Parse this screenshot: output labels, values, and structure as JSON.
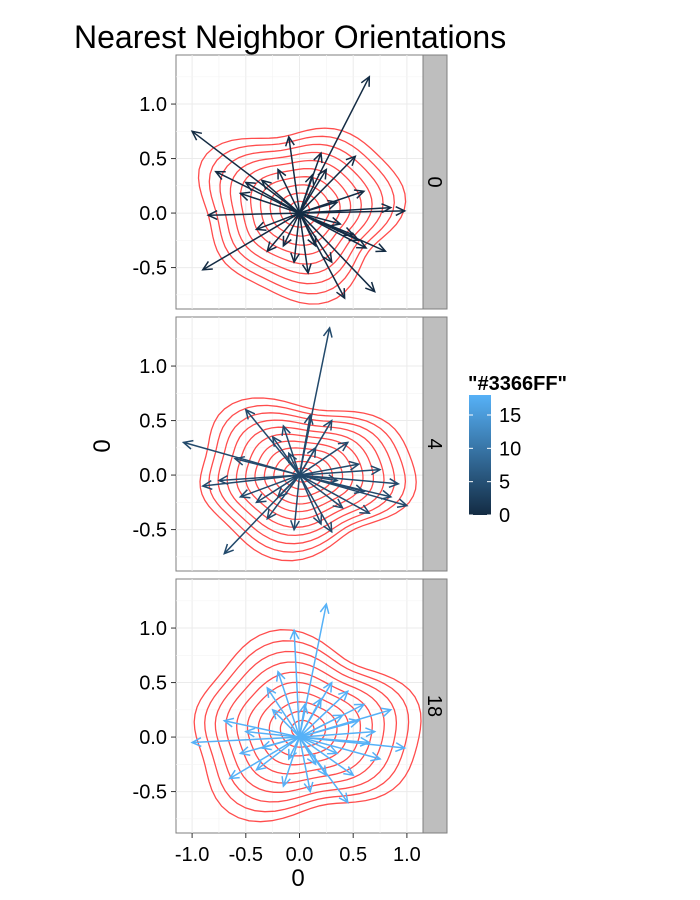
{
  "chart_data": {
    "type": "vector-field",
    "title": "Nearest Neighbor Orientations",
    "xlabel": "0",
    "ylabel": "0",
    "xlim": [
      -1.15,
      1.15
    ],
    "ylim": [
      -0.88,
      1.45
    ],
    "x_ticks": [
      -1.0,
      -0.5,
      0.0,
      0.5,
      1.0
    ],
    "x_tick_labels": [
      "-1.0",
      "-0.5",
      "0.0",
      "0.5",
      "1.0"
    ],
    "y_ticks": [
      -0.5,
      0.0,
      0.5,
      1.0
    ],
    "y_tick_labels": [
      "-0.5",
      "0.0",
      "0.5",
      "1.0"
    ],
    "grid": true,
    "legend": {
      "title": "\"#3366FF\"",
      "position": "right",
      "labels": [
        "15",
        "10",
        "5",
        "0"
      ],
      "ticks": [
        15,
        10,
        5,
        0
      ],
      "range": [
        0,
        18
      ],
      "low_color": "#132B43",
      "high_color": "#56B1F7"
    },
    "contour_color": "#FF4D4D",
    "strip_fill": "#BEBEBE",
    "panels": [
      {
        "strip_label": "0",
        "color_value": 0,
        "contours": {
          "cx": 0.0,
          "cy": 0.03,
          "rx": 0.92,
          "ry": 0.78,
          "levels": 10
        },
        "arrows": [
          {
            "x": 0.65,
            "y": 1.25
          },
          {
            "x": -1.0,
            "y": 0.75
          },
          {
            "x": -0.9,
            "y": -0.52
          },
          {
            "x": 0.42,
            "y": -0.78
          },
          {
            "x": 0.7,
            "y": -0.72
          },
          {
            "x": 0.98,
            "y": 0.02
          },
          {
            "x": 0.8,
            "y": -0.35
          },
          {
            "x": 0.52,
            "y": 0.52
          },
          {
            "x": -0.78,
            "y": 0.38
          },
          {
            "x": -0.5,
            "y": 0.28
          },
          {
            "x": -0.85,
            "y": -0.02
          },
          {
            "x": 0.08,
            "y": -0.55
          },
          {
            "x": -0.1,
            "y": 0.7
          },
          {
            "x": 0.25,
            "y": 0.4
          },
          {
            "x": -0.3,
            "y": -0.35
          },
          {
            "x": 0.5,
            "y": -0.2
          },
          {
            "x": 0.35,
            "y": 0.1
          },
          {
            "x": 0.15,
            "y": -0.3
          },
          {
            "x": -0.35,
            "y": 0.3
          },
          {
            "x": 0.55,
            "y": -0.25
          },
          {
            "x": -0.05,
            "y": -0.45
          },
          {
            "x": 0.3,
            "y": -0.45
          },
          {
            "x": -0.55,
            "y": 0.18
          },
          {
            "x": 0.6,
            "y": 0.2
          },
          {
            "x": 0.2,
            "y": 0.55
          },
          {
            "x": -0.2,
            "y": 0.4
          },
          {
            "x": 0.85,
            "y": 0.05
          },
          {
            "x": 0.62,
            "y": -0.32
          },
          {
            "x": -0.4,
            "y": -0.15
          },
          {
            "x": 0.12,
            "y": 0.35
          },
          {
            "x": -0.15,
            "y": -0.3
          },
          {
            "x": 0.38,
            "y": -0.1
          }
        ]
      },
      {
        "strip_label": "4",
        "color_value": 4,
        "contours": {
          "cx": 0.03,
          "cy": 0.0,
          "rx": 1.0,
          "ry": 0.7,
          "levels": 11
        },
        "arrows": [
          {
            "x": 0.28,
            "y": 1.35
          },
          {
            "x": -1.08,
            "y": 0.3
          },
          {
            "x": -0.7,
            "y": -0.72
          },
          {
            "x": 1.0,
            "y": -0.28
          },
          {
            "x": 0.3,
            "y": -0.52
          },
          {
            "x": 0.65,
            "y": -0.35
          },
          {
            "x": -0.9,
            "y": -0.1
          },
          {
            "x": 0.92,
            "y": -0.08
          },
          {
            "x": 0.55,
            "y": 0.1
          },
          {
            "x": 0.1,
            "y": 0.55
          },
          {
            "x": -0.5,
            "y": 0.6
          },
          {
            "x": -0.3,
            "y": -0.4
          },
          {
            "x": -0.6,
            "y": 0.15
          },
          {
            "x": 0.45,
            "y": 0.3
          },
          {
            "x": -0.15,
            "y": 0.45
          },
          {
            "x": 0.2,
            "y": -0.45
          },
          {
            "x": -0.4,
            "y": -0.25
          },
          {
            "x": 0.75,
            "y": 0.05
          },
          {
            "x": 0.3,
            "y": 0.5
          },
          {
            "x": -0.05,
            "y": -0.5
          },
          {
            "x": 0.6,
            "y": -0.15
          },
          {
            "x": -0.25,
            "y": 0.35
          },
          {
            "x": 0.15,
            "y": 0.25
          },
          {
            "x": -0.75,
            "y": -0.05
          },
          {
            "x": 0.4,
            "y": -0.3
          },
          {
            "x": -0.1,
            "y": 0.2
          },
          {
            "x": 0.85,
            "y": -0.2
          },
          {
            "x": -0.55,
            "y": -0.2
          },
          {
            "x": 0.35,
            "y": -0.05
          },
          {
            "x": -0.2,
            "y": -0.2
          }
        ]
      },
      {
        "strip_label": "18",
        "color_value": 18,
        "contours": {
          "cx": 0.03,
          "cy": 0.07,
          "rx": 1.05,
          "ry": 0.82,
          "levels": 10
        },
        "arrows": [
          {
            "x": 0.25,
            "y": 1.22
          },
          {
            "x": -1.0,
            "y": -0.05
          },
          {
            "x": -0.7,
            "y": 0.15
          },
          {
            "x": 0.98,
            "y": -0.1
          },
          {
            "x": 0.85,
            "y": 0.25
          },
          {
            "x": 0.45,
            "y": -0.6
          },
          {
            "x": -0.65,
            "y": -0.38
          },
          {
            "x": -0.05,
            "y": 0.98
          },
          {
            "x": 0.6,
            "y": 0.3
          },
          {
            "x": -0.4,
            "y": -0.3
          },
          {
            "x": 0.3,
            "y": 0.5
          },
          {
            "x": -0.3,
            "y": 0.45
          },
          {
            "x": 0.1,
            "y": -0.5
          },
          {
            "x": -0.2,
            "y": 0.6
          },
          {
            "x": 0.7,
            "y": 0.05
          },
          {
            "x": 0.5,
            "y": -0.35
          },
          {
            "x": -0.5,
            "y": 0.05
          },
          {
            "x": 0.2,
            "y": 0.35
          },
          {
            "x": -0.15,
            "y": -0.45
          },
          {
            "x": 0.35,
            "y": -0.15
          },
          {
            "x": 0.75,
            "y": -0.2
          },
          {
            "x": -0.25,
            "y": 0.25
          },
          {
            "x": 0.15,
            "y": -0.25
          },
          {
            "x": 0.55,
            "y": 0.15
          },
          {
            "x": -0.35,
            "y": -0.1
          },
          {
            "x": 0.05,
            "y": 0.3
          },
          {
            "x": 0.4,
            "y": 0.2
          },
          {
            "x": -0.1,
            "y": -0.2
          },
          {
            "x": 0.65,
            "y": -0.05
          },
          {
            "x": 0.25,
            "y": -0.35
          },
          {
            "x": -0.55,
            "y": -0.15
          },
          {
            "x": 0.45,
            "y": 0.42
          }
        ]
      }
    ]
  }
}
